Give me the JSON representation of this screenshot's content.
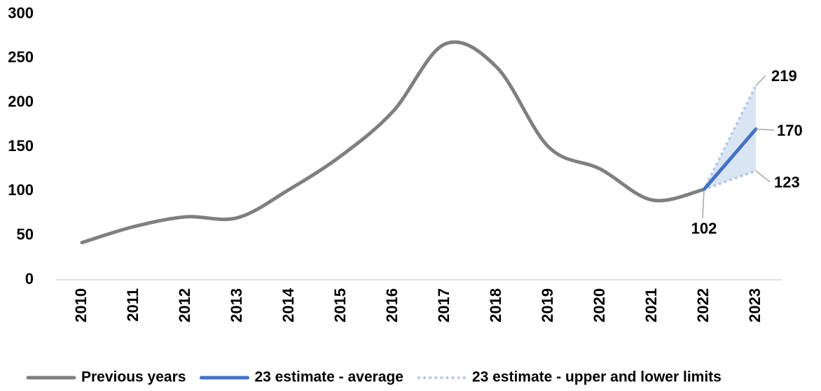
{
  "chart_data": {
    "type": "line",
    "categories": [
      "2010",
      "2011",
      "2012",
      "2013",
      "2014",
      "2015",
      "2016",
      "2017",
      "2018",
      "2019",
      "2020",
      "2021",
      "2022",
      "2023"
    ],
    "series": [
      {
        "name": "Previous years",
        "color": "#7f7f7f",
        "style": "solid",
        "smooth": true,
        "values": [
          42,
          60,
          71,
          70,
          102,
          140,
          190,
          266,
          240,
          150,
          125,
          90,
          102,
          null
        ]
      },
      {
        "name": "23 estimate - average",
        "color": "#4472c4",
        "style": "solid",
        "smooth": false,
        "values": [
          null,
          null,
          null,
          null,
          null,
          null,
          null,
          null,
          null,
          null,
          null,
          null,
          102,
          170
        ]
      },
      {
        "name": "23 estimate - upper and lower limits",
        "color": "#b4c7e7",
        "style": "dotted",
        "smooth": false,
        "values": [
          null,
          null,
          null,
          null,
          null,
          null,
          null,
          null,
          null,
          null,
          null,
          null,
          102,
          219
        ]
      },
      {
        "values": [
          null,
          null,
          null,
          null,
          null,
          null,
          null,
          null,
          null,
          null,
          null,
          null,
          102,
          123
        ],
        "color": "#b4c7e7",
        "style": "dotted",
        "smooth": false
      }
    ],
    "ylim": [
      0,
      300
    ],
    "yticks": [
      0,
      50,
      100,
      150,
      200,
      250,
      300
    ],
    "grid": false
  }
}
